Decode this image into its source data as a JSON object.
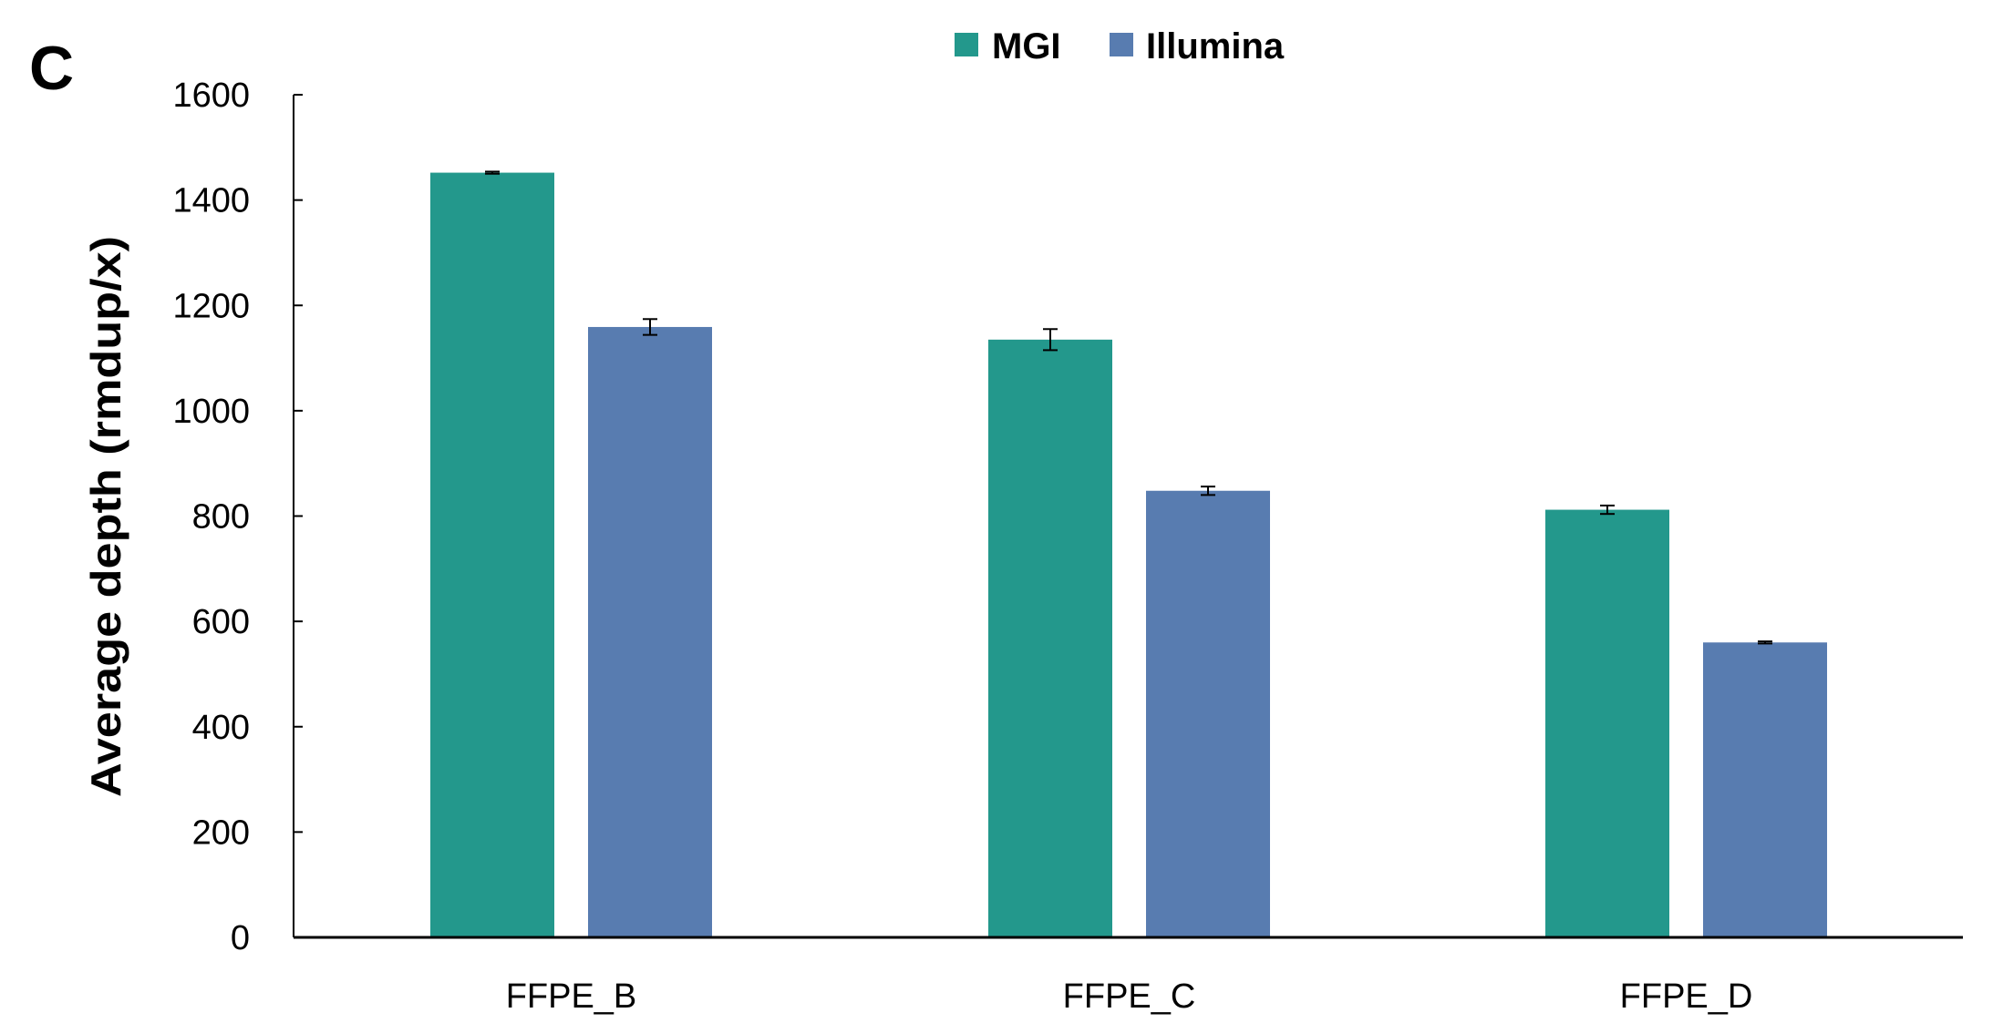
{
  "chart_data": {
    "type": "bar",
    "panel_label": "C",
    "title": "",
    "xlabel": "",
    "ylabel": "Average depth (rmdup/x)",
    "ylim": [
      0,
      1600
    ],
    "yticks": [
      0,
      200,
      400,
      600,
      800,
      1000,
      1200,
      1400,
      1600
    ],
    "grid": false,
    "legend_position": "top-center",
    "categories": [
      "FFPE_B",
      "FFPE_C",
      "FFPE_D"
    ],
    "series": [
      {
        "name": "MGI",
        "color": "#23988C",
        "values": [
          1452,
          1135,
          812
        ],
        "errors": [
          2,
          20,
          8
        ]
      },
      {
        "name": "Illumina",
        "color": "#587CB0",
        "values": [
          1159,
          848,
          560
        ],
        "errors": [
          15,
          8,
          2
        ]
      }
    ]
  }
}
